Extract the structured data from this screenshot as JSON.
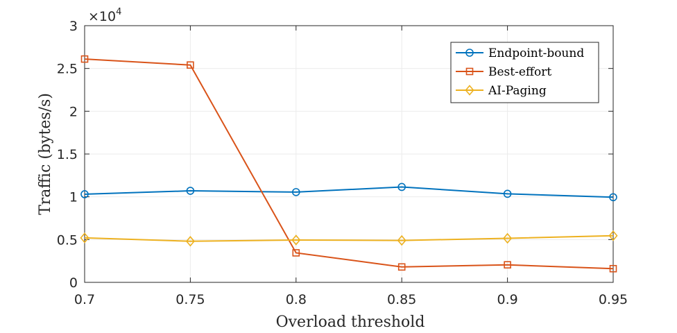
{
  "chart_data": {
    "type": "line",
    "title": "",
    "xlabel": "Overload threshold",
    "ylabel": "Traffic (bytes/s)",
    "x": [
      0.7,
      0.75,
      0.8,
      0.85,
      0.9,
      0.95
    ],
    "x_tick_labels": [
      "0.7",
      "0.75",
      "0.8",
      "0.85",
      "0.9",
      "0.95"
    ],
    "xlim": [
      0.7,
      0.95
    ],
    "ylim": [
      0,
      30000
    ],
    "y_ticks": [
      0,
      5000,
      10000,
      15000,
      20000,
      25000,
      30000
    ],
    "y_tick_labels": [
      "0",
      "0.5",
      "1",
      "1.5",
      "2",
      "2.5",
      "3"
    ],
    "y_exponent": {
      "base": "×10",
      "power": "4"
    },
    "grid": true,
    "legend_position": "top-right",
    "series": [
      {
        "name": "Endpoint-bound",
        "color": "#0072BD",
        "marker": "circle",
        "values": [
          10300,
          10700,
          10550,
          11150,
          10350,
          9950
        ]
      },
      {
        "name": "Best-effort",
        "color": "#D95319",
        "marker": "square",
        "values": [
          26100,
          25400,
          3450,
          1800,
          2050,
          1600
        ]
      },
      {
        "name": "AI-Paging",
        "color": "#EDB120",
        "marker": "diamond",
        "values": [
          5200,
          4800,
          4950,
          4900,
          5150,
          5450
        ]
      }
    ]
  }
}
